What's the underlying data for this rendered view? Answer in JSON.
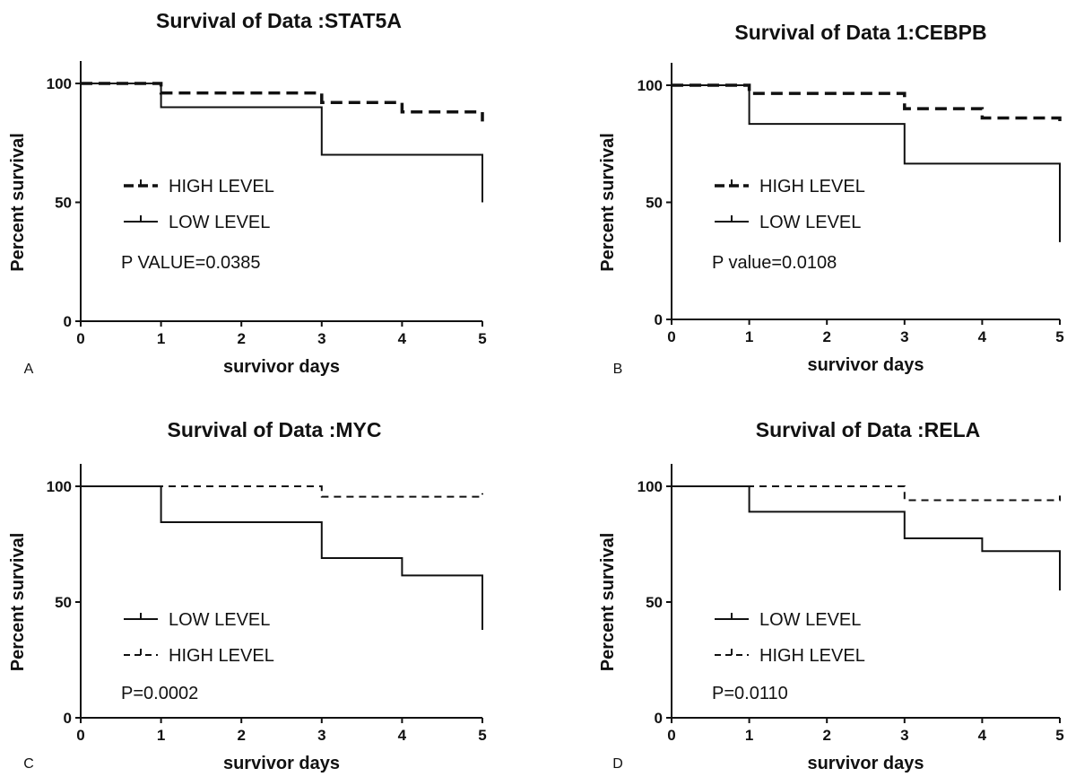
{
  "chart_data": [
    {
      "panel": "A",
      "type": "line",
      "title": "Survival of Data :STAT5A",
      "xlabel": "survivor days",
      "ylabel": "Percent survival",
      "xlim": [
        0,
        5
      ],
      "ylim": [
        0,
        100
      ],
      "x_ticks": [
        0,
        1,
        2,
        3,
        4,
        5
      ],
      "y_ticks": [
        0,
        50,
        100
      ],
      "legend": "center-left",
      "pvalue_text": "P VALUE=0.0385",
      "series": [
        {
          "name": "HIGH LEVEL",
          "style": "dashed-bold",
          "steps": [
            [
              0,
              100
            ],
            [
              1,
              96
            ],
            [
              3,
              92
            ],
            [
              4,
              88
            ],
            [
              5,
              84
            ]
          ]
        },
        {
          "name": "LOW  LEVEL",
          "style": "solid",
          "steps": [
            [
              0,
              100
            ],
            [
              1,
              90
            ],
            [
              3,
              70
            ],
            [
              5,
              50
            ]
          ]
        }
      ]
    },
    {
      "panel": "B",
      "type": "line",
      "title": "Survival of Data 1:CEBPB",
      "xlabel": "survivor days",
      "ylabel": "Percent survival",
      "xlim": [
        0,
        5
      ],
      "ylim": [
        0,
        100
      ],
      "x_ticks": [
        0,
        1,
        2,
        3,
        4,
        5
      ],
      "y_ticks": [
        0,
        50,
        100
      ],
      "legend": "center-left",
      "pvalue_text": "P value=0.0108",
      "series": [
        {
          "name": "HIGH LEVEL",
          "style": "dashed-bold",
          "steps": [
            [
              0,
              100
            ],
            [
              1,
              96.5
            ],
            [
              3,
              90
            ],
            [
              4,
              86
            ],
            [
              5,
              82
            ]
          ]
        },
        {
          "name": "LOW  LEVEL",
          "style": "solid",
          "steps": [
            [
              0,
              100
            ],
            [
              1,
              83.5
            ],
            [
              3,
              66.5
            ],
            [
              5,
              33
            ]
          ]
        }
      ]
    },
    {
      "panel": "C",
      "type": "line",
      "title": "Survival of Data :MYC",
      "xlabel": "survivor days",
      "ylabel": "Percent survival",
      "xlim": [
        0,
        5
      ],
      "ylim": [
        0,
        100
      ],
      "x_ticks": [
        0,
        1,
        2,
        3,
        4,
        5
      ],
      "y_ticks": [
        0,
        50,
        100
      ],
      "legend": "bottom-left",
      "pvalue_text": "P=0.0002",
      "series": [
        {
          "name": "LOW  LEVEL",
          "style": "solid",
          "steps": [
            [
              0,
              100
            ],
            [
              1,
              84.5
            ],
            [
              3,
              69
            ],
            [
              4,
              61.5
            ],
            [
              5,
              38
            ]
          ]
        },
        {
          "name": "HIGH LEVEL",
          "style": "dashed-thin",
          "steps": [
            [
              0,
              100
            ],
            [
              3,
              95.5
            ],
            [
              5,
              97
            ]
          ]
        }
      ]
    },
    {
      "panel": "D",
      "type": "line",
      "title": "Survival of Data :RELA",
      "xlabel": "survivor days",
      "ylabel": "Percent survival",
      "xlim": [
        0,
        5
      ],
      "ylim": [
        0,
        100
      ],
      "x_ticks": [
        0,
        1,
        2,
        3,
        4,
        5
      ],
      "y_ticks": [
        0,
        50,
        100
      ],
      "legend": "bottom-left",
      "pvalue_text": "P=0.0110",
      "series": [
        {
          "name": "LOW  LEVEL",
          "style": "solid",
          "steps": [
            [
              0,
              100
            ],
            [
              1,
              89
            ],
            [
              3,
              77.5
            ],
            [
              4,
              72
            ],
            [
              5,
              55
            ]
          ]
        },
        {
          "name": "HIGH LEVEL",
          "style": "dashed-thin",
          "steps": [
            [
              0,
              100
            ],
            [
              3,
              94
            ],
            [
              5,
              96
            ]
          ]
        }
      ]
    }
  ]
}
